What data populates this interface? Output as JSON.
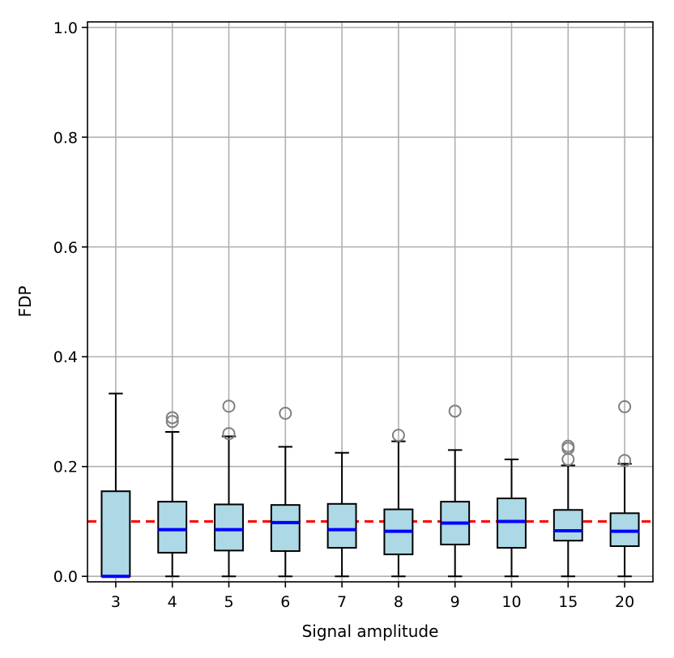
{
  "chart_data": {
    "type": "box",
    "title": "",
    "xlabel": "Signal amplitude",
    "ylabel": "FDP",
    "ylim": [
      -0.01,
      1.01
    ],
    "yticks": [
      0.0,
      0.2,
      0.4,
      0.6,
      0.8,
      1.0
    ],
    "ytick_labels": [
      "0.0",
      "0.2",
      "0.4",
      "0.6",
      "0.8",
      "1.0"
    ],
    "grid": true,
    "reference_line": {
      "y": 0.1,
      "style": "dashed",
      "color": "#ff0000"
    },
    "colors": {
      "box_fill": "#add8e6",
      "box_edge": "#000000",
      "median": "#0000ff",
      "outlier": "#808080",
      "grid": "#b0b0b0"
    },
    "categories": [
      "3",
      "4",
      "5",
      "6",
      "7",
      "8",
      "9",
      "10",
      "15",
      "20"
    ],
    "boxes": [
      {
        "label": "3",
        "whisker_low": 0.0,
        "q1": 0.0,
        "median": 0.0,
        "q3": 0.155,
        "whisker_high": 0.333,
        "outliers": []
      },
      {
        "label": "4",
        "whisker_low": 0.0,
        "q1": 0.043,
        "median": 0.085,
        "q3": 0.136,
        "whisker_high": 0.263,
        "outliers": [
          0.282,
          0.289
        ]
      },
      {
        "label": "5",
        "whisker_low": 0.0,
        "q1": 0.047,
        "median": 0.085,
        "q3": 0.131,
        "whisker_high": 0.255,
        "outliers": [
          0.26,
          0.31
        ]
      },
      {
        "label": "6",
        "whisker_low": 0.0,
        "q1": 0.046,
        "median": 0.098,
        "q3": 0.13,
        "whisker_high": 0.236,
        "outliers": [
          0.297
        ]
      },
      {
        "label": "7",
        "whisker_low": 0.0,
        "q1": 0.052,
        "median": 0.085,
        "q3": 0.132,
        "whisker_high": 0.225,
        "outliers": []
      },
      {
        "label": "8",
        "whisker_low": 0.0,
        "q1": 0.04,
        "median": 0.082,
        "q3": 0.122,
        "whisker_high": 0.246,
        "outliers": [
          0.257
        ]
      },
      {
        "label": "9",
        "whisker_low": 0.0,
        "q1": 0.058,
        "median": 0.097,
        "q3": 0.136,
        "whisker_high": 0.23,
        "outliers": [
          0.301
        ]
      },
      {
        "label": "10",
        "whisker_low": 0.0,
        "q1": 0.052,
        "median": 0.1,
        "q3": 0.142,
        "whisker_high": 0.213,
        "outliers": []
      },
      {
        "label": "15",
        "whisker_low": 0.0,
        "q1": 0.065,
        "median": 0.083,
        "q3": 0.121,
        "whisker_high": 0.202,
        "outliers": [
          0.213,
          0.233,
          0.237
        ]
      },
      {
        "label": "20",
        "whisker_low": 0.0,
        "q1": 0.055,
        "median": 0.082,
        "q3": 0.115,
        "whisker_high": 0.205,
        "outliers": [
          0.211,
          0.309
        ]
      }
    ]
  }
}
